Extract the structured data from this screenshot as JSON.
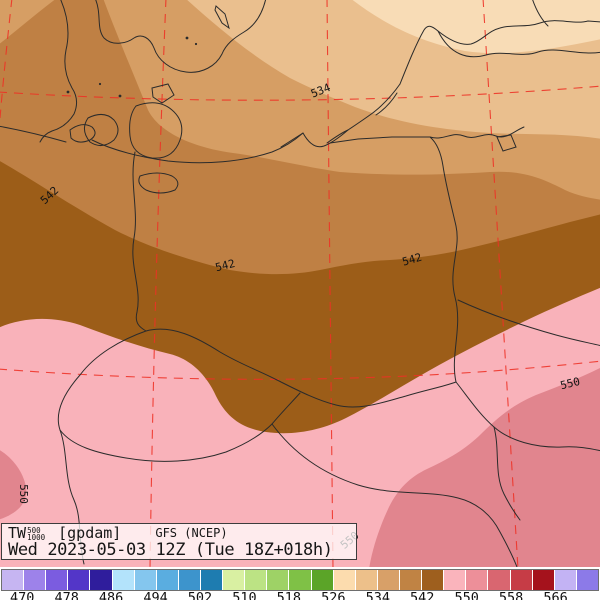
{
  "title_box": {
    "param": "TW",
    "param_sup": "500",
    "param_sub": "1000",
    "units": "[gpdam]",
    "model": "GFS (NCEP)",
    "valid": "Wed 2023-05-03 12Z (Tue 18Z+018h)"
  },
  "map": {
    "contour_labels": [
      {
        "text": "534"
      },
      {
        "text": "542"
      },
      {
        "text": "542"
      },
      {
        "text": "542"
      },
      {
        "text": "550"
      },
      {
        "text": "550"
      },
      {
        "text": "550"
      }
    ],
    "colors": {
      "band_526_530": "#f8dcb6",
      "band_530_534": "#eabf8e",
      "band_534_538": "#d69e64",
      "band_538_542": "#bf8044",
      "band_542_546": "#9c5d18",
      "band_546_550": "#f9b2ba",
      "band_550_554": "#e1858e",
      "grid": "#ee3125",
      "boundary": "#2b2b2b",
      "label": "#141414"
    }
  },
  "colorbar": {
    "tick_labels": [
      "470",
      "478",
      "486",
      "494",
      "502",
      "510",
      "518",
      "526",
      "534",
      "542",
      "550",
      "558",
      "566"
    ],
    "segment_colors": [
      "#c6b5f2",
      "#9d82ea",
      "#7b5ce0",
      "#5336c8",
      "#2f1d9c",
      "#b3e3fb",
      "#84c6ee",
      "#5aade0",
      "#3d94cc",
      "#1e7cb0",
      "#d9f0a2",
      "#bce384",
      "#9ed266",
      "#7fc146",
      "#5ba428",
      "#fcdcae",
      "#edc08a",
      "#d8a068",
      "#c08344",
      "#9e5f1e",
      "#fab4bc",
      "#ed8f99",
      "#d96670",
      "#c63c46",
      "#a5121c",
      "#c3b3f4",
      "#8c7ae8"
    ]
  }
}
